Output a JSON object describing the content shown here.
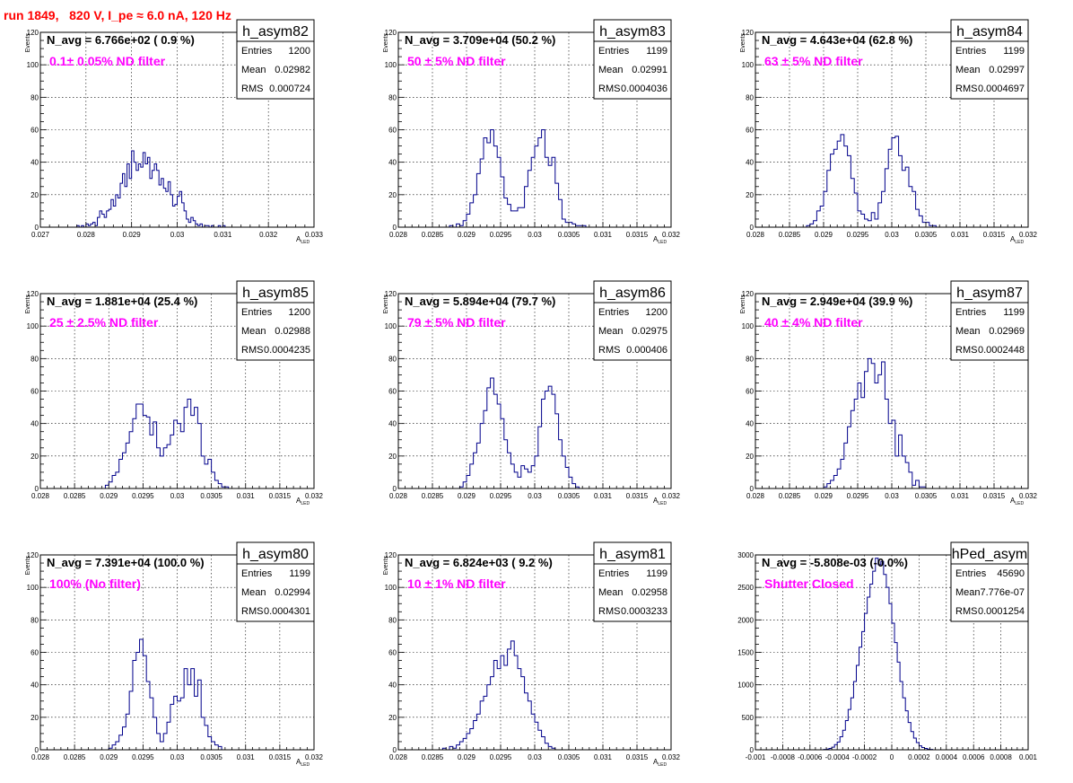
{
  "run_label": "run 1849,   820 V, I_pe ≈ 6.0 nA, 120 Hz",
  "colors": {
    "title": "#ff0000",
    "annotation": "#ff00ff",
    "histogram": "#00008b",
    "grid": "#000000",
    "background": "#ffffff"
  },
  "chart_data": [
    {
      "type": "bar",
      "histname": "h_asym82",
      "navg_label": "N_avg = 6.766e+02 ( 0.9 %)",
      "filter_label": "0.1± 0.05% ND filter",
      "stats": [
        [
          "Entries",
          "1200"
        ],
        [
          "Mean",
          "0.02982"
        ],
        [
          "RMS",
          "0.000724"
        ]
      ],
      "xlabel": "A",
      "xlabel_sub": "LED",
      "ylabel": "Events",
      "xlim": [
        0.027,
        0.033
      ],
      "ylim": [
        0,
        120
      ],
      "xticks": [
        "0.027",
        "0.028",
        "0.029",
        "0.03",
        "0.031",
        "0.032",
        "0.033"
      ],
      "yticks": [
        "0",
        "20",
        "40",
        "60",
        "80",
        "100",
        "120"
      ],
      "grid": true,
      "bin_start": 0.0278,
      "bin_width": 5e-05,
      "values": [
        1,
        0,
        1,
        0,
        2,
        1,
        2,
        3,
        1,
        6,
        10,
        8,
        6,
        10,
        11,
        17,
        13,
        20,
        18,
        27,
        33,
        25,
        39,
        30,
        47,
        40,
        35,
        39,
        37,
        46,
        39,
        43,
        30,
        35,
        39,
        35,
        26,
        30,
        24,
        22,
        28,
        20,
        13,
        14,
        19,
        22,
        15,
        10,
        5,
        3,
        6,
        4,
        2,
        1,
        2,
        0,
        1,
        1,
        0,
        1,
        0,
        0,
        1,
        0,
        1
      ]
    },
    {
      "type": "bar",
      "histname": "h_asym83",
      "navg_label": "N_avg = 3.709e+04 (50.2 %)",
      "filter_label": "50 ± 5% ND filter",
      "stats": [
        [
          "Entries",
          "1199"
        ],
        [
          "Mean",
          "0.02991"
        ],
        [
          "RMS",
          "0.0004036"
        ]
      ],
      "xlabel": "A",
      "xlabel_sub": "LED",
      "ylabel": "Events",
      "xlim": [
        0.028,
        0.032
      ],
      "ylim": [
        0,
        120
      ],
      "xticks": [
        "0.028",
        "0.0285",
        "0.029",
        "0.0295",
        "0.03",
        "0.0305",
        "0.031",
        "0.0315",
        "0.032"
      ],
      "yticks": [
        "0",
        "20",
        "40",
        "60",
        "80",
        "100",
        "120"
      ],
      "grid": true,
      "bin_start": 0.02875,
      "bin_width": 5e-05,
      "values": [
        1,
        0,
        2,
        1,
        4,
        8,
        15,
        20,
        33,
        42,
        55,
        52,
        60,
        50,
        43,
        31,
        18,
        14,
        10,
        10,
        12,
        12,
        25,
        35,
        43,
        50,
        55,
        60,
        43,
        38,
        43,
        27,
        17,
        5,
        3,
        3,
        2,
        1,
        1,
        1
      ]
    },
    {
      "type": "bar",
      "histname": "h_asym84",
      "navg_label": "N_avg = 4.643e+04 (62.8 %)",
      "filter_label": "63 ± 5% ND filter",
      "stats": [
        [
          "Entries",
          "1199"
        ],
        [
          "Mean",
          "0.02997"
        ],
        [
          "RMS",
          "0.0004697"
        ]
      ],
      "xlabel": "A",
      "xlabel_sub": "LED",
      "ylabel": "Events",
      "xlim": [
        0.028,
        0.032
      ],
      "ylim": [
        0,
        120
      ],
      "xticks": [
        "0.028",
        "0.0285",
        "0.029",
        "0.0295",
        "0.03",
        "0.0305",
        "0.031",
        "0.0315",
        "0.032"
      ],
      "yticks": [
        "0",
        "20",
        "40",
        "60",
        "80",
        "100",
        "120"
      ],
      "grid": true,
      "bin_start": 0.02875,
      "bin_width": 5e-05,
      "values": [
        1,
        2,
        4,
        10,
        13,
        22,
        35,
        45,
        48,
        53,
        57,
        50,
        44,
        30,
        21,
        10,
        8,
        5,
        4,
        9,
        5,
        15,
        22,
        36,
        48,
        55,
        56,
        44,
        35,
        37,
        25,
        22,
        11,
        7,
        3,
        3,
        1,
        1
      ]
    },
    {
      "type": "bar",
      "histname": "h_asym85",
      "navg_label": "N_avg = 1.881e+04 (25.4 %)",
      "filter_label": "25 ± 2.5% ND filter",
      "stats": [
        [
          "Entries",
          "1200"
        ],
        [
          "Mean",
          "0.02988"
        ],
        [
          "RMS",
          "0.0004235"
        ]
      ],
      "xlabel": "A",
      "xlabel_sub": "LED",
      "ylabel": "Events",
      "xlim": [
        0.028,
        0.032
      ],
      "ylim": [
        0,
        120
      ],
      "xticks": [
        "0.028",
        "0.0285",
        "0.029",
        "0.0295",
        "0.03",
        "0.0305",
        "0.031",
        "0.0315",
        "0.032"
      ],
      "yticks": [
        "0",
        "20",
        "40",
        "60",
        "80",
        "100",
        "120"
      ],
      "grid": true,
      "bin_start": 0.02895,
      "bin_width": 5e-05,
      "values": [
        2,
        4,
        8,
        10,
        18,
        22,
        28,
        35,
        43,
        52,
        52,
        45,
        44,
        33,
        41,
        25,
        20,
        25,
        27,
        33,
        42,
        40,
        35,
        50,
        55,
        45,
        50,
        40,
        20,
        15,
        18,
        10,
        5,
        3,
        1,
        1
      ]
    },
    {
      "type": "bar",
      "histname": "h_asym86",
      "navg_label": "N_avg = 5.894e+04 (79.7 %)",
      "filter_label": "79 ± 5% ND filter",
      "stats": [
        [
          "Entries",
          "1200"
        ],
        [
          "Mean",
          "0.02975"
        ],
        [
          "RMS",
          "0.000406"
        ]
      ],
      "xlabel": "A",
      "xlabel_sub": "LED",
      "ylabel": "Events",
      "xlim": [
        0.028,
        0.032
      ],
      "ylim": [
        0,
        120
      ],
      "xticks": [
        "0.028",
        "0.0285",
        "0.029",
        "0.0295",
        "0.03",
        "0.0305",
        "0.031",
        "0.0315",
        "0.032"
      ],
      "yticks": [
        "0",
        "20",
        "40",
        "60",
        "80",
        "100",
        "120"
      ],
      "grid": true,
      "bin_start": 0.0289,
      "bin_width": 5e-05,
      "values": [
        1,
        4,
        8,
        15,
        22,
        28,
        40,
        48,
        62,
        68,
        58,
        52,
        43,
        30,
        22,
        15,
        10,
        7,
        14,
        12,
        10,
        14,
        20,
        38,
        55,
        60,
        63,
        58,
        46,
        30,
        20,
        13,
        7,
        3,
        1
      ]
    },
    {
      "type": "bar",
      "histname": "h_asym87",
      "navg_label": "N_avg = 2.949e+04 (39.9 %)",
      "filter_label": "40 ± 4% ND filter",
      "stats": [
        [
          "Entries",
          "1199"
        ],
        [
          "Mean",
          "0.02969"
        ],
        [
          "RMS",
          "0.0002448"
        ]
      ],
      "xlabel": "A",
      "xlabel_sub": "LED",
      "ylabel": "Events",
      "xlim": [
        0.028,
        0.032
      ],
      "ylim": [
        0,
        120
      ],
      "xticks": [
        "0.028",
        "0.0285",
        "0.029",
        "0.0295",
        "0.03",
        "0.0305",
        "0.031",
        "0.0315",
        "0.032"
      ],
      "yticks": [
        "0",
        "20",
        "40",
        "60",
        "80",
        "100",
        "120"
      ],
      "grid": true,
      "bin_start": 0.029,
      "bin_width": 5e-05,
      "values": [
        1,
        3,
        5,
        8,
        12,
        18,
        28,
        38,
        48,
        55,
        65,
        56,
        72,
        80,
        77,
        65,
        70,
        78,
        55,
        40,
        42,
        20,
        33,
        20,
        16,
        10,
        2,
        5,
        1,
        1
      ]
    },
    {
      "type": "bar",
      "histname": "h_asym80",
      "navg_label": "N_avg = 7.391e+04 (100.0 %)",
      "filter_label": "100% (No filter)",
      "stats": [
        [
          "Entries",
          "1199"
        ],
        [
          "Mean",
          "0.02994"
        ],
        [
          "RMS",
          "0.0004301"
        ]
      ],
      "xlabel": "A",
      "xlabel_sub": "LED",
      "ylabel": "Events",
      "xlim": [
        0.028,
        0.032
      ],
      "ylim": [
        0,
        120
      ],
      "xticks": [
        "0.028",
        "0.0285",
        "0.029",
        "0.0295",
        "0.03",
        "0.0305",
        "0.031",
        "0.0315",
        "0.032"
      ],
      "yticks": [
        "0",
        "20",
        "40",
        "60",
        "80",
        "100",
        "120"
      ],
      "grid": true,
      "bin_start": 0.029,
      "bin_width": 5e-05,
      "values": [
        1,
        3,
        5,
        9,
        14,
        22,
        36,
        55,
        60,
        68,
        58,
        42,
        32,
        20,
        10,
        5,
        10,
        17,
        28,
        33,
        30,
        32,
        50,
        40,
        50,
        33,
        43,
        20,
        15,
        8,
        5,
        3,
        2
      ]
    },
    {
      "type": "bar",
      "histname": "h_asym81",
      "navg_label": "N_avg = 6.824e+03 ( 9.2 %)",
      "filter_label": "10 ± 1% ND filter",
      "stats": [
        [
          "Entries",
          "1199"
        ],
        [
          "Mean",
          "0.02958"
        ],
        [
          "RMS",
          "0.0003233"
        ]
      ],
      "xlabel": "A",
      "xlabel_sub": "LED",
      "ylabel": "Events",
      "xlim": [
        0.028,
        0.032
      ],
      "ylim": [
        0,
        120
      ],
      "xticks": [
        "0.028",
        "0.0285",
        "0.029",
        "0.0295",
        "0.03",
        "0.0305",
        "0.031",
        "0.0315",
        "0.032"
      ],
      "yticks": [
        "0",
        "20",
        "40",
        "60",
        "80",
        "100",
        "120"
      ],
      "grid": true,
      "bin_start": 0.02865,
      "bin_width": 5e-05,
      "values": [
        1,
        0,
        2,
        1,
        3,
        5,
        7,
        10,
        13,
        18,
        22,
        30,
        33,
        40,
        45,
        55,
        50,
        58,
        52,
        62,
        67,
        58,
        50,
        45,
        35,
        30,
        22,
        17,
        12,
        8,
        4,
        2,
        1
      ]
    },
    {
      "type": "bar",
      "histname": "hPed_asym",
      "navg_label": "N_avg = -5.808e-03 (-0.0%)",
      "filter_label": "Shutter Closed",
      "stats": [
        [
          "Entries",
          "45690"
        ],
        [
          "Mean",
          "7.776e-07"
        ],
        [
          "RMS",
          "0.0001254"
        ]
      ],
      "xlabel": "",
      "xlabel_sub": "",
      "ylabel": "",
      "xlim": [
        -0.001,
        0.001
      ],
      "ylim": [
        0,
        3000
      ],
      "xticks": [
        "-0.001",
        "-0.0008",
        "-0.0006",
        "-0.0004",
        "-0.0002",
        "0",
        "0.0002",
        "0.0004",
        "0.0006",
        "0.0008",
        "0.001"
      ],
      "yticks": [
        "0",
        "500",
        "1000",
        "1500",
        "2000",
        "2500",
        "3000"
      ],
      "grid": true,
      "bin_start": -0.0005,
      "bin_width": 2e-05,
      "values": [
        5,
        10,
        20,
        40,
        80,
        120,
        200,
        300,
        450,
        620,
        800,
        1050,
        1300,
        1580,
        1820,
        2100,
        2350,
        2550,
        2750,
        2950,
        2850,
        2900,
        2700,
        2500,
        2250,
        1950,
        1650,
        1350,
        1050,
        800,
        600,
        420,
        280,
        180,
        110,
        60,
        35,
        20,
        10,
        5
      ]
    }
  ]
}
